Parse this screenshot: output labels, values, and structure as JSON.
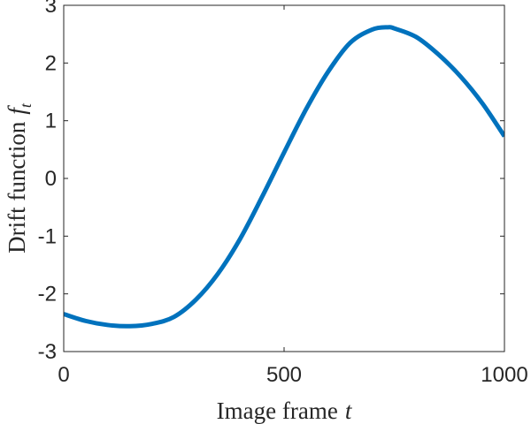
{
  "chart_data": {
    "type": "line",
    "xlabel": "Image frame",
    "xlabel_var": "t",
    "ylabel": "Drift function",
    "ylabel_var": "f",
    "ylabel_sub": "t",
    "xlim": [
      0,
      1000
    ],
    "ylim": [
      -3,
      3
    ],
    "x_ticks": [
      {
        "value": 0,
        "label": "0"
      },
      {
        "value": 500,
        "label": "500"
      },
      {
        "value": 1000,
        "label": "1000"
      }
    ],
    "y_ticks": [
      {
        "value": -3,
        "label": "-3"
      },
      {
        "value": -2,
        "label": "-2"
      },
      {
        "value": -1,
        "label": "-1"
      },
      {
        "value": 0,
        "label": "0"
      },
      {
        "value": 1,
        "label": "1"
      },
      {
        "value": 2,
        "label": "2"
      },
      {
        "value": 3,
        "label": "3"
      }
    ],
    "grid": false,
    "series": [
      {
        "color": "#0072BD",
        "x": [
          0,
          50,
          100,
          150,
          200,
          250,
          300,
          350,
          400,
          450,
          500,
          550,
          600,
          650,
          700,
          735,
          750,
          800,
          850,
          900,
          950,
          1000
        ],
        "y": [
          -2.35,
          -2.47,
          -2.54,
          -2.56,
          -2.52,
          -2.4,
          -2.1,
          -1.65,
          -1.05,
          -0.32,
          0.45,
          1.2,
          1.85,
          2.35,
          2.58,
          2.62,
          2.6,
          2.45,
          2.15,
          1.77,
          1.3,
          0.73
        ]
      }
    ]
  }
}
